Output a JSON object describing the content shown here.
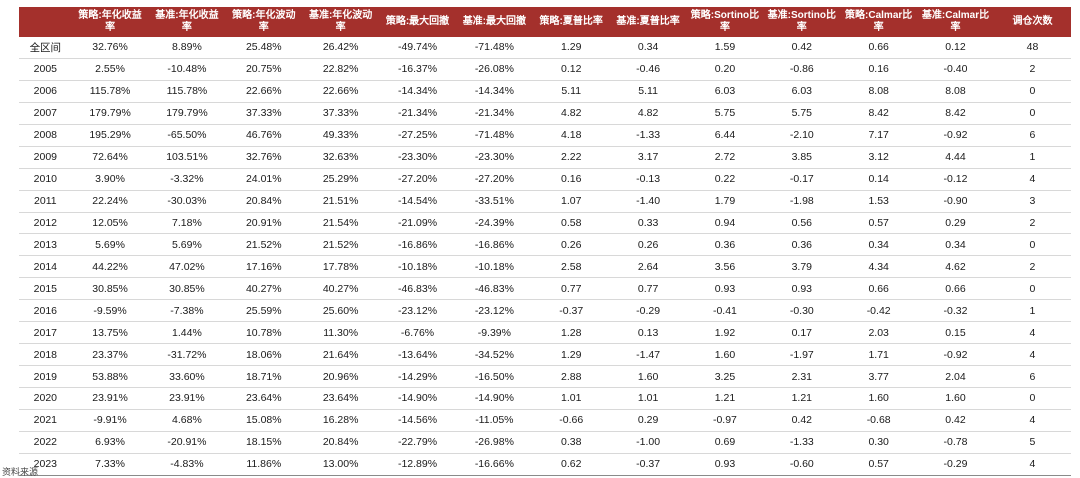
{
  "columns": [
    "",
    "策略:年化收益率",
    "基准:年化收益率",
    "策略:年化波动率",
    "基准:年化波动率",
    "策略:最大回撤",
    "基准:最大回撤",
    "策略:夏普比率",
    "基准:夏普比率",
    "策略:Sortino比率",
    "基准:Sortino比率",
    "策略:Calmar比率",
    "基准:Calmar比率",
    "调仓次数"
  ],
  "rows": [
    [
      "全区间",
      "32.76%",
      "8.89%",
      "25.48%",
      "26.42%",
      "-49.74%",
      "-71.48%",
      "1.29",
      "0.34",
      "1.59",
      "0.42",
      "0.66",
      "0.12",
      "48"
    ],
    [
      "2005",
      "2.55%",
      "-10.48%",
      "20.75%",
      "22.82%",
      "-16.37%",
      "-26.08%",
      "0.12",
      "-0.46",
      "0.20",
      "-0.86",
      "0.16",
      "-0.40",
      "2"
    ],
    [
      "2006",
      "115.78%",
      "115.78%",
      "22.66%",
      "22.66%",
      "-14.34%",
      "-14.34%",
      "5.11",
      "5.11",
      "6.03",
      "6.03",
      "8.08",
      "8.08",
      "0"
    ],
    [
      "2007",
      "179.79%",
      "179.79%",
      "37.33%",
      "37.33%",
      "-21.34%",
      "-21.34%",
      "4.82",
      "4.82",
      "5.75",
      "5.75",
      "8.42",
      "8.42",
      "0"
    ],
    [
      "2008",
      "195.29%",
      "-65.50%",
      "46.76%",
      "49.33%",
      "-27.25%",
      "-71.48%",
      "4.18",
      "-1.33",
      "6.44",
      "-2.10",
      "7.17",
      "-0.92",
      "6"
    ],
    [
      "2009",
      "72.64%",
      "103.51%",
      "32.76%",
      "32.63%",
      "-23.30%",
      "-23.30%",
      "2.22",
      "3.17",
      "2.72",
      "3.85",
      "3.12",
      "4.44",
      "1"
    ],
    [
      "2010",
      "3.90%",
      "-3.32%",
      "24.01%",
      "25.29%",
      "-27.20%",
      "-27.20%",
      "0.16",
      "-0.13",
      "0.22",
      "-0.17",
      "0.14",
      "-0.12",
      "4"
    ],
    [
      "2011",
      "22.24%",
      "-30.03%",
      "20.84%",
      "21.51%",
      "-14.54%",
      "-33.51%",
      "1.07",
      "-1.40",
      "1.79",
      "-1.98",
      "1.53",
      "-0.90",
      "3"
    ],
    [
      "2012",
      "12.05%",
      "7.18%",
      "20.91%",
      "21.54%",
      "-21.09%",
      "-24.39%",
      "0.58",
      "0.33",
      "0.94",
      "0.56",
      "0.57",
      "0.29",
      "2"
    ],
    [
      "2013",
      "5.69%",
      "5.69%",
      "21.52%",
      "21.52%",
      "-16.86%",
      "-16.86%",
      "0.26",
      "0.26",
      "0.36",
      "0.36",
      "0.34",
      "0.34",
      "0"
    ],
    [
      "2014",
      "44.22%",
      "47.02%",
      "17.16%",
      "17.78%",
      "-10.18%",
      "-10.18%",
      "2.58",
      "2.64",
      "3.56",
      "3.79",
      "4.34",
      "4.62",
      "2"
    ],
    [
      "2015",
      "30.85%",
      "30.85%",
      "40.27%",
      "40.27%",
      "-46.83%",
      "-46.83%",
      "0.77",
      "0.77",
      "0.93",
      "0.93",
      "0.66",
      "0.66",
      "0"
    ],
    [
      "2016",
      "-9.59%",
      "-7.38%",
      "25.59%",
      "25.60%",
      "-23.12%",
      "-23.12%",
      "-0.37",
      "-0.29",
      "-0.41",
      "-0.30",
      "-0.42",
      "-0.32",
      "1"
    ],
    [
      "2017",
      "13.75%",
      "1.44%",
      "10.78%",
      "11.30%",
      "-6.76%",
      "-9.39%",
      "1.28",
      "0.13",
      "1.92",
      "0.17",
      "2.03",
      "0.15",
      "4"
    ],
    [
      "2018",
      "23.37%",
      "-31.72%",
      "18.06%",
      "21.64%",
      "-13.64%",
      "-34.52%",
      "1.29",
      "-1.47",
      "1.60",
      "-1.97",
      "1.71",
      "-0.92",
      "4"
    ],
    [
      "2019",
      "53.88%",
      "33.60%",
      "18.71%",
      "20.96%",
      "-14.29%",
      "-16.50%",
      "2.88",
      "1.60",
      "3.25",
      "2.31",
      "3.77",
      "2.04",
      "6"
    ],
    [
      "2020",
      "23.91%",
      "23.91%",
      "23.64%",
      "23.64%",
      "-14.90%",
      "-14.90%",
      "1.01",
      "1.01",
      "1.21",
      "1.21",
      "1.60",
      "1.60",
      "0"
    ],
    [
      "2021",
      "-9.91%",
      "4.68%",
      "15.08%",
      "16.28%",
      "-14.56%",
      "-11.05%",
      "-0.66",
      "0.29",
      "-0.97",
      "0.42",
      "-0.68",
      "0.42",
      "4"
    ],
    [
      "2022",
      "6.93%",
      "-20.91%",
      "18.15%",
      "20.84%",
      "-22.79%",
      "-26.98%",
      "0.38",
      "-1.00",
      "0.69",
      "-1.33",
      "0.30",
      "-0.78",
      "5"
    ],
    [
      "2023",
      "7.33%",
      "-4.83%",
      "11.86%",
      "13.00%",
      "-12.89%",
      "-16.66%",
      "0.62",
      "-0.37",
      "0.93",
      "-0.60",
      "0.57",
      "-0.29",
      "4"
    ]
  ],
  "footer": "资料来源"
}
